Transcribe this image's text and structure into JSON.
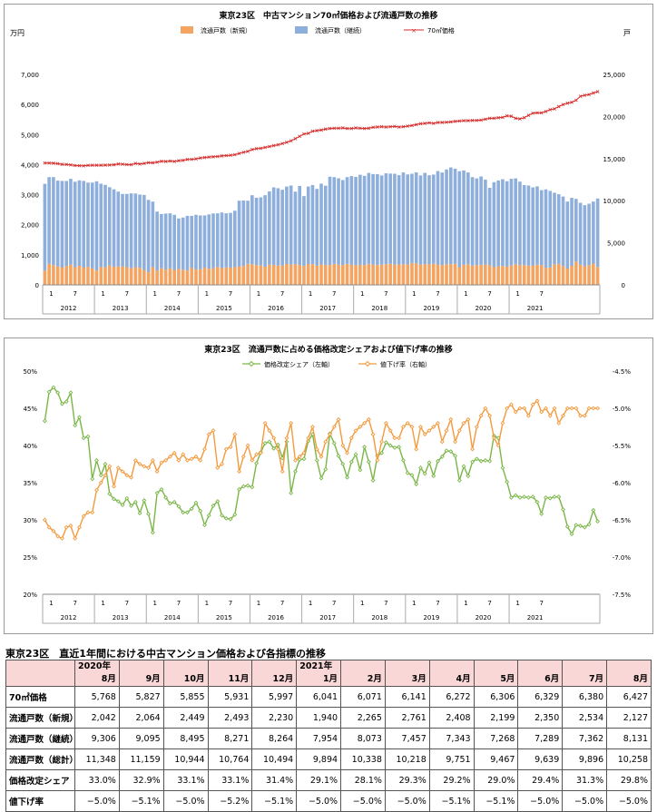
{
  "chart_data": [
    {
      "type": "bar+line",
      "title": "東京23区　中古マンション70㎡価格および流通戸数の推移",
      "left_unit": "万円",
      "right_unit": "戸",
      "ylim_left": [
        0,
        7000
      ],
      "ylim_right": [
        0,
        25000
      ],
      "left_ticks": [
        "0",
        "1,000",
        "2,000",
        "3,000",
        "4,000",
        "5,000",
        "6,000",
        "7,000"
      ],
      "right_ticks": [
        "0",
        "5,000",
        "10,000",
        "15,000",
        "20,000",
        "25,000"
      ],
      "years": [
        "2012",
        "2013",
        "2014",
        "2015",
        "2016",
        "2017",
        "2018",
        "2019",
        "2020",
        "2021"
      ],
      "month_ticks": [
        "1",
        "7"
      ],
      "series": [
        {
          "name": "流通戸数（新規）",
          "color": "#f4a460",
          "axis": "right",
          "stacked": true,
          "values": [
            1700,
            2500,
            2350,
            2180,
            2050,
            2240,
            2400,
            2100,
            2260,
            2050,
            2150,
            1950,
            1700,
            2120,
            2080,
            2300,
            2150,
            2180,
            2200,
            2100,
            1970,
            2100,
            2020,
            1780,
            1500,
            2090,
            1700,
            1970,
            1820,
            1950,
            1770,
            1890,
            1800,
            1700,
            2050,
            1820,
            1850,
            2050,
            1920,
            1980,
            2150,
            2000,
            2080,
            2050,
            2110,
            2200,
            2230,
            2500,
            2450,
            2350,
            2300,
            2150,
            2400,
            2380,
            2280,
            2300,
            2480,
            2400,
            2470,
            2350,
            2250,
            2480,
            2460,
            2300,
            2420,
            2380,
            2350,
            2500,
            2410,
            2350,
            2500,
            2420,
            2330,
            2380,
            2350,
            2500,
            2410,
            2350,
            2400,
            2450,
            2500,
            2400,
            2430,
            2450,
            2420,
            2600,
            2560,
            2400,
            2450,
            2470,
            2500,
            2420,
            2350,
            2460,
            2450,
            2500,
            2100,
            2390,
            2450,
            2300,
            2350,
            2380,
            2400,
            2330,
            2100,
            2200,
            2250,
            2160,
            2300,
            2450,
            2360,
            2350,
            2300,
            2280,
            2400,
            2350,
            2042,
            2064,
            2449,
            2493,
            2230,
            1940,
            2265,
            2761,
            2408,
            2199,
            2350,
            2534,
            2127
          ]
        },
        {
          "name": "流通戸数（継続）",
          "color": "#8eaedb",
          "axis": "right",
          "stacked": true,
          "values": [
            10300,
            10300,
            10450,
            10200,
            10300,
            10100,
            10200,
            10150,
            10150,
            10300,
            10000,
            10200,
            10600,
            9900,
            9800,
            9300,
            9200,
            8900,
            8600,
            8700,
            8900,
            8750,
            8700,
            8900,
            8600,
            7800,
            7000,
            6450,
            6650,
            6550,
            6550,
            6000,
            6200,
            6500,
            6150,
            6500,
            6400,
            6200,
            6450,
            6500,
            6350,
            6600,
            6420,
            6500,
            6700,
            7800,
            7800,
            7500,
            8200,
            8000,
            8100,
            8500,
            8700,
            9200,
            9200,
            9000,
            9200,
            9400,
            8600,
            9400,
            8300,
            9200,
            9400,
            9100,
            9600,
            9400,
            10500,
            10300,
            10250,
            10100,
            10300,
            10500,
            10500,
            10700,
            10600,
            10800,
            10750,
            10800,
            10600,
            10800,
            10720,
            10800,
            10600,
            10900,
            10700,
            10600,
            10800,
            10600,
            10850,
            10550,
            10600,
            11100,
            11000,
            11250,
            11500,
            11300,
            11400,
            11200,
            10900,
            10500,
            10300,
            10500,
            10100,
            9200,
            10100,
            10200,
            10300,
            10150,
            10300,
            10200,
            9900,
            9500,
            9500,
            9300,
            9300,
            8900,
            9306,
            9095,
            8495,
            8271,
            8264,
            7954,
            8073,
            7457,
            7343,
            7268,
            7289,
            7362,
            8131
          ]
        },
        {
          "name": "70㎡価格",
          "color": "#d62a2a",
          "axis": "left",
          "marker": "x",
          "values": [
            4056,
            4052,
            4045,
            4031,
            4010,
            4005,
            3990,
            3970,
            3965,
            3960,
            3975,
            3980,
            3980,
            3980,
            3983,
            3985,
            3996,
            4020,
            4012,
            4000,
            3998,
            4040,
            4020,
            4040,
            4065,
            4060,
            4080,
            4110,
            4104,
            4120,
            4105,
            4130,
            4140,
            4170,
            4175,
            4190,
            4220,
            4235,
            4250,
            4260,
            4270,
            4290,
            4300,
            4310,
            4330,
            4370,
            4410,
            4440,
            4500,
            4530,
            4540,
            4570,
            4600,
            4630,
            4660,
            4700,
            4740,
            4790,
            4860,
            4940,
            5020,
            5040,
            5110,
            5130,
            5150,
            5180,
            5200,
            5210,
            5210,
            5220,
            5200,
            5200,
            5220,
            5210,
            5200,
            5210,
            5240,
            5250,
            5260,
            5250,
            5260,
            5270,
            5250,
            5260,
            5280,
            5300,
            5330,
            5360,
            5370,
            5390,
            5370,
            5400,
            5400,
            5410,
            5420,
            5440,
            5450,
            5460,
            5460,
            5470,
            5470,
            5480,
            5510,
            5540,
            5540,
            5560,
            5570,
            5620,
            5610,
            5540,
            5520,
            5560,
            5640,
            5710,
            5720,
            5720,
            5768,
            5827,
            5855,
            5931,
            5997,
            6041,
            6071,
            6141,
            6272,
            6306,
            6329,
            6380,
            6427
          ]
        }
      ]
    },
    {
      "type": "line",
      "title": "東京23区　流通戸数に占める価格改定シェアおよび値下げ率の推移",
      "ylim_left": [
        20,
        50
      ],
      "ylim_right": [
        -7.5,
        -4.5
      ],
      "left_ticks": [
        "20%",
        "25%",
        "30%",
        "35%",
        "40%",
        "45%",
        "50%"
      ],
      "right_ticks": [
        "-7.5%",
        "-7.0%",
        "-6.5%",
        "-6.0%",
        "-5.5%",
        "-5.0%",
        "-4.5%"
      ],
      "years": [
        "2012",
        "2013",
        "2014",
        "2015",
        "2016",
        "2017",
        "2018",
        "2019",
        "2020",
        "2021"
      ],
      "month_ticks": [
        "1",
        "7"
      ],
      "series": [
        {
          "name": "価格改定シェア（左軸）",
          "color": "#7ab648",
          "axis": "left",
          "marker": "diamond",
          "values": [
            43.3,
            47.2,
            47.8,
            47.1,
            45.6,
            45.9,
            47.1,
            42.7,
            43.8,
            41.0,
            41.2,
            35.5,
            38.0,
            36.0,
            37.5,
            33.5,
            32.8,
            32.5,
            32.0,
            32.9,
            31.9,
            32.4,
            30.9,
            32.6,
            30.8,
            28.3,
            33.6,
            34.1,
            33.0,
            32.2,
            32.4,
            31.8,
            31.0,
            31.0,
            31.5,
            32.3,
            31.2,
            29.3,
            30.6,
            31.9,
            32.5,
            30.6,
            30.2,
            30.1,
            30.7,
            34.1,
            34.5,
            34.6,
            34.4,
            37.6,
            39.1,
            40.3,
            40.5,
            39.6,
            40.1,
            38.3,
            40.5,
            33.6,
            36.5,
            38.1,
            38.2,
            40.6,
            41.5,
            38.0,
            35.6,
            36.8,
            41.6,
            40.3,
            38.6,
            37.5,
            35.7,
            37.8,
            38.8,
            36.7,
            39.8,
            37.8,
            35.3,
            38.6,
            39.0,
            40.4,
            40.0,
            39.7,
            39.8,
            38.0,
            36.3,
            36.0,
            34.8,
            37.0,
            36.2,
            37.7,
            35.9,
            37.9,
            38.5,
            39.3,
            39.2,
            38.6,
            35.3,
            37.2,
            35.9,
            37.8,
            38.2,
            37.9,
            38.0,
            37.9,
            41.3,
            41.0,
            37.0,
            35.1,
            33.0,
            33.3,
            33.0,
            33.1,
            33.0,
            33.1,
            32.4,
            30.8,
            33.0,
            32.9,
            33.1,
            33.1,
            31.4,
            29.1,
            28.1,
            29.3,
            29.2,
            29.0,
            29.4,
            31.3,
            29.8
          ]
        },
        {
          "name": "値下げ率（右軸）",
          "color": "#f39a3d",
          "axis": "right",
          "marker": "diamond",
          "values": [
            -6.5,
            -6.6,
            -6.65,
            -6.72,
            -6.75,
            -6.6,
            -6.58,
            -6.75,
            -6.6,
            -6.45,
            -6.4,
            -6.4,
            -6.1,
            -6.0,
            -5.9,
            -5.78,
            -6.05,
            -5.8,
            -5.85,
            -5.9,
            -5.93,
            -5.7,
            -5.75,
            -5.78,
            -5.8,
            -5.7,
            -5.85,
            -5.73,
            -5.7,
            -5.65,
            -5.6,
            -5.7,
            -5.62,
            -5.7,
            -5.68,
            -5.65,
            -5.7,
            -5.55,
            -5.35,
            -5.3,
            -5.8,
            -5.75,
            -5.55,
            -5.52,
            -5.35,
            -5.85,
            -5.65,
            -5.5,
            -5.7,
            -5.62,
            -5.6,
            -5.2,
            -5.3,
            -5.4,
            -5.55,
            -5.85,
            -5.4,
            -5.2,
            -5.7,
            -5.65,
            -5.6,
            -5.4,
            -5.25,
            -5.55,
            -5.65,
            -5.45,
            -5.35,
            -5.25,
            -5.15,
            -5.5,
            -5.6,
            -5.4,
            -5.3,
            -5.25,
            -5.2,
            -5.15,
            -5.35,
            -5.7,
            -5.45,
            -5.2,
            -5.3,
            -5.4,
            -5.4,
            -5.25,
            -5.2,
            -5.25,
            -5.55,
            -5.25,
            -5.35,
            -5.3,
            -5.25,
            -5.2,
            -5.45,
            -5.3,
            -5.15,
            -5.45,
            -5.3,
            -5.2,
            -5.15,
            -5.55,
            -5.25,
            -5.1,
            -5.0,
            -5.1,
            -5.4,
            -5.5,
            -5.2,
            -5.0,
            -4.95,
            -5.05,
            -5.0,
            -5.0,
            -5.1,
            -4.95,
            -4.9,
            -5.05,
            -5.0,
            -5.1,
            -5.0,
            -5.2,
            -5.1,
            -5.0,
            -5.0,
            -5.0,
            -5.1,
            -5.1,
            -5.0,
            -5.0,
            -5.0
          ]
        }
      ]
    }
  ],
  "table": {
    "title": "東京23区　直近1年間における中古マンション価格および各指標の推移",
    "columns": [
      {
        "year": "2020年",
        "month": "8月"
      },
      {
        "year": "",
        "month": "9月"
      },
      {
        "year": "",
        "month": "10月"
      },
      {
        "year": "",
        "month": "11月"
      },
      {
        "year": "",
        "month": "12月"
      },
      {
        "year": "2021年",
        "month": "1月"
      },
      {
        "year": "",
        "month": "2月"
      },
      {
        "year": "",
        "month": "3月"
      },
      {
        "year": "",
        "month": "4月"
      },
      {
        "year": "",
        "month": "5月"
      },
      {
        "year": "",
        "month": "6月"
      },
      {
        "year": "",
        "month": "7月"
      },
      {
        "year": "",
        "month": "8月"
      }
    ],
    "rows": [
      {
        "label": "70㎡価格",
        "cells": [
          "5,768",
          "5,827",
          "5,855",
          "5,931",
          "5,997",
          "6,041",
          "6,071",
          "6,141",
          "6,272",
          "6,306",
          "6,329",
          "6,380",
          "6,427"
        ]
      },
      {
        "label": "流通戸数（新規）",
        "cells": [
          "2,042",
          "2,064",
          "2,449",
          "2,493",
          "2,230",
          "1,940",
          "2,265",
          "2,761",
          "2,408",
          "2,199",
          "2,350",
          "2,534",
          "2,127"
        ]
      },
      {
        "label": "流通戸数（継続）",
        "cells": [
          "9,306",
          "9,095",
          "8,495",
          "8,271",
          "8,264",
          "7,954",
          "8,073",
          "7,457",
          "7,343",
          "7,268",
          "7,289",
          "7,362",
          "8,131"
        ]
      },
      {
        "label": "流通戸数（総計）",
        "cells": [
          "11,348",
          "11,159",
          "10,944",
          "10,764",
          "10,494",
          "9,894",
          "10,338",
          "10,218",
          "9,751",
          "9,467",
          "9,639",
          "9,896",
          "10,258"
        ]
      },
      {
        "label": "価格改定シェア",
        "cells": [
          "33.0%",
          "32.9%",
          "33.1%",
          "33.1%",
          "31.4%",
          "29.1%",
          "28.1%",
          "29.3%",
          "29.2%",
          "29.0%",
          "29.4%",
          "31.3%",
          "29.8%"
        ]
      },
      {
        "label": "値下げ率",
        "cells": [
          "−5.0%",
          "−5.1%",
          "−5.0%",
          "−5.2%",
          "−5.1%",
          "−5.0%",
          "−5.0%",
          "−5.0%",
          "−5.1%",
          "−5.1%",
          "−5.0%",
          "−5.0%",
          "−5.0%"
        ]
      }
    ]
  }
}
